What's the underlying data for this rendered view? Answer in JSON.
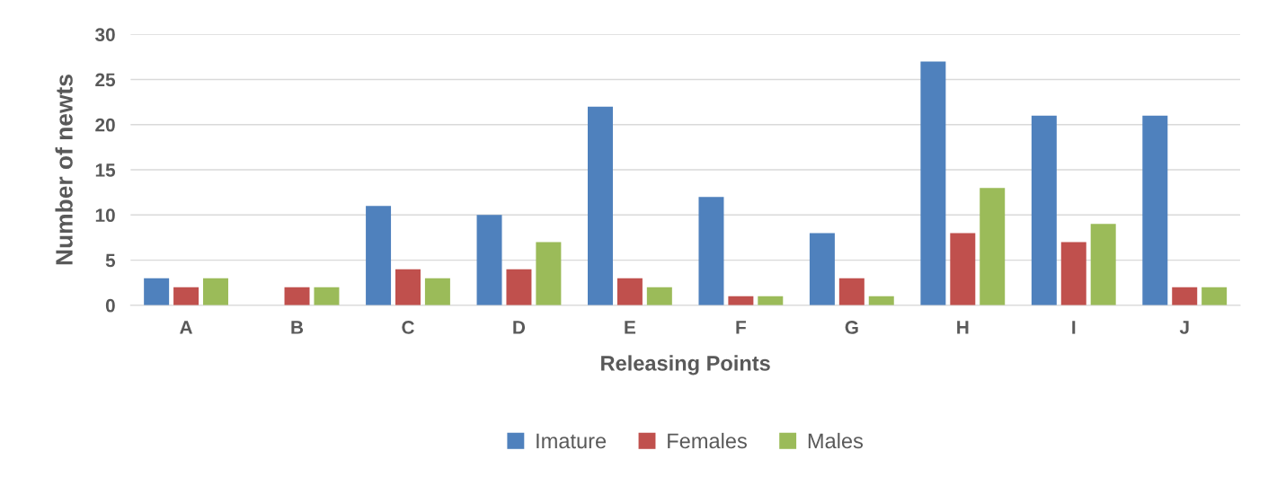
{
  "chart_data": {
    "type": "bar",
    "xlabel": "Releasing Points",
    "ylabel": "Number of newts",
    "categories": [
      "A",
      "B",
      "C",
      "D",
      "E",
      "F",
      "G",
      "H",
      "I",
      "J"
    ],
    "series": [
      {
        "name": "Imature",
        "color": "#4f81bd",
        "values": [
          3,
          0,
          11,
          10,
          22,
          12,
          8,
          27,
          21,
          21
        ]
      },
      {
        "name": "Females",
        "color": "#c0504d",
        "values": [
          2,
          2,
          4,
          4,
          3,
          1,
          3,
          8,
          7,
          2
        ]
      },
      {
        "name": "Males",
        "color": "#9bbb59",
        "values": [
          3,
          2,
          3,
          7,
          2,
          1,
          1,
          13,
          9,
          2
        ]
      }
    ],
    "ylim": [
      0,
      30
    ],
    "yticks": [
      0,
      5,
      10,
      15,
      20,
      25,
      30
    ],
    "grid": "y",
    "legend": "bottom"
  }
}
